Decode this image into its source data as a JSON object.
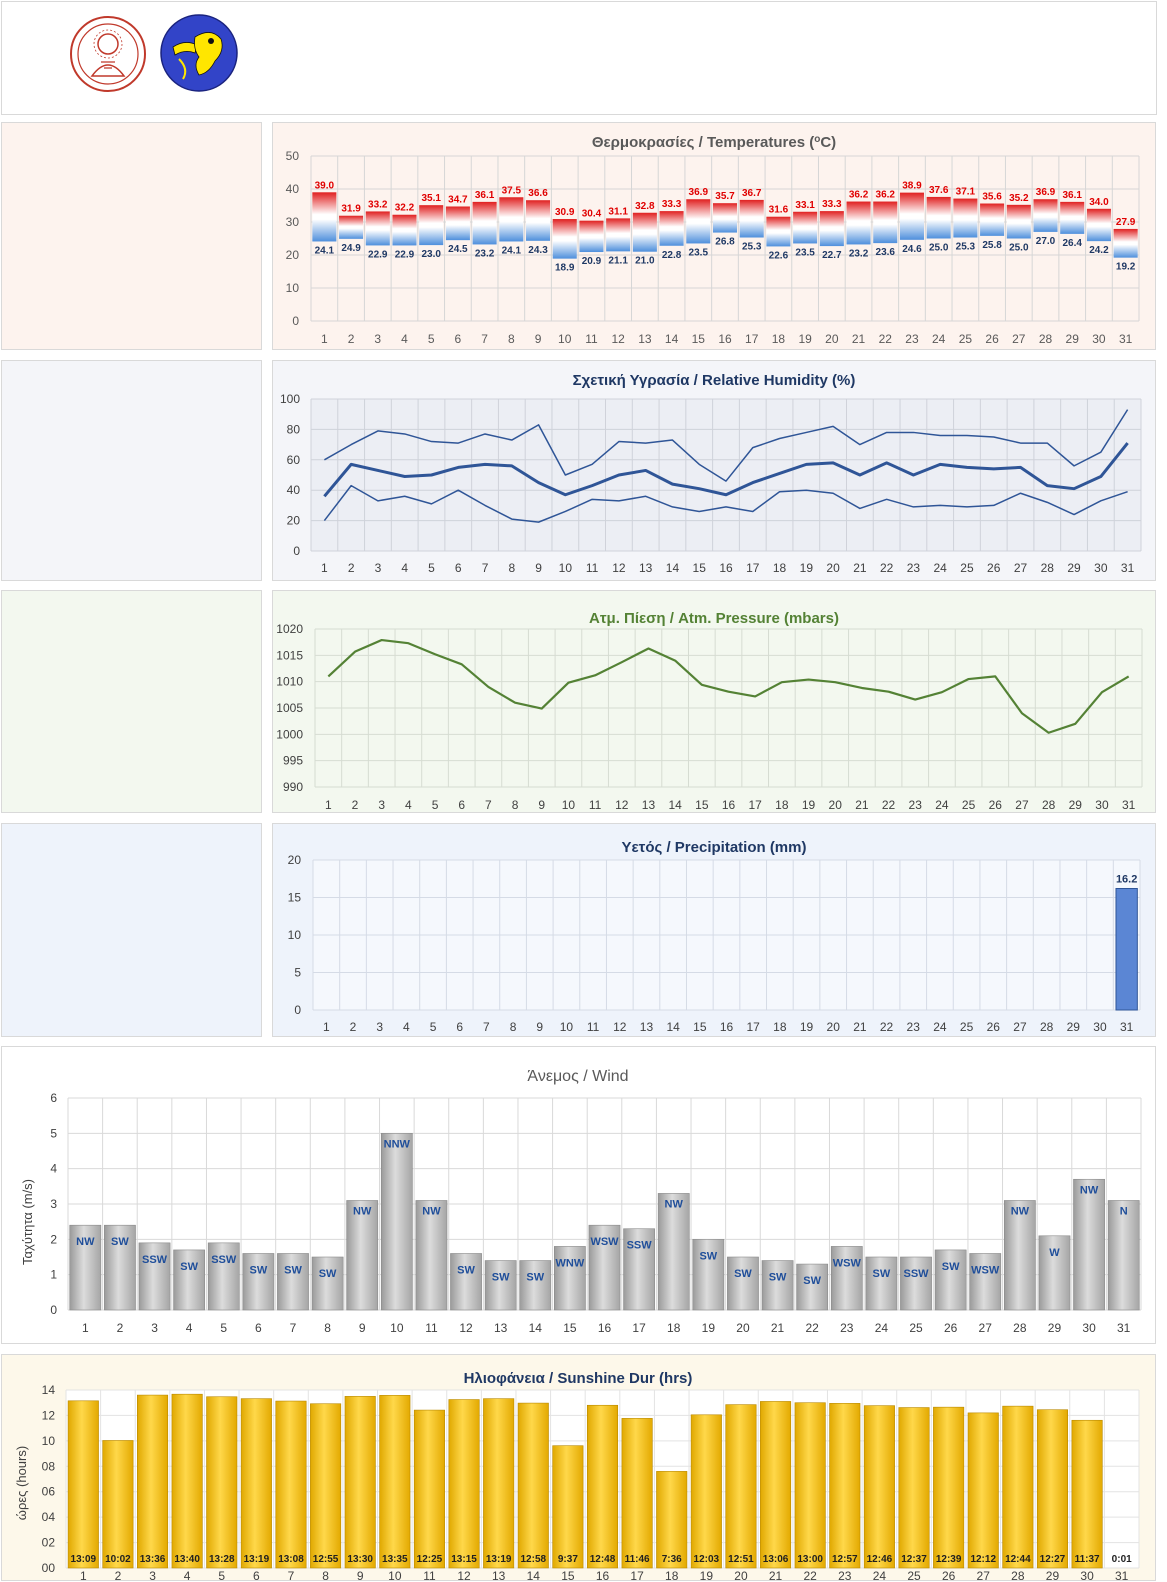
{
  "colors": {
    "temp_bg": "#fdf3ee",
    "hum_bg": "#f4f5f9",
    "hum_plot": "#eceef4",
    "pres_bg": "#f3f8ef",
    "precip_bg": "#eef3fb",
    "precip_plot": "#f5f8fd",
    "sun_bg": "#fdf8ea",
    "max_label": "#e00000",
    "min_label": "#1f3864",
    "humidity_line": "#2f5597",
    "pressure_line": "#548235",
    "precip_bar": "#5b86d4",
    "wind_bar": "#b8b8b8",
    "wind_label": "#1f4e9a",
    "sun_bar": "#ffc000",
    "temp_title": "#595959",
    "humidity_title": "#1f3864",
    "pressure_title": "#548235",
    "precip_title": "#1f3864",
    "wind_title": "#595959",
    "sun_title": "#1f3864"
  },
  "logos": [
    "university-seal",
    "meteorology-emblem"
  ],
  "chart_data": [
    {
      "id": "temperature",
      "type": "bar",
      "title": "Θερμοκρασίες / Temperatures (",
      "title_sup": "o",
      "title_end": "C)",
      "categories": [
        "1",
        "2",
        "3",
        "4",
        "5",
        "6",
        "7",
        "8",
        "9",
        "10",
        "11",
        "12",
        "13",
        "14",
        "15",
        "16",
        "17",
        "18",
        "19",
        "20",
        "21",
        "22",
        "23",
        "24",
        "25",
        "26",
        "27",
        "28",
        "29",
        "30",
        "31"
      ],
      "series": [
        {
          "name": "",
          "values": [
            39.0,
            31.9,
            33.2,
            32.2,
            35.1,
            34.7,
            36.1,
            37.5,
            36.6,
            30.9,
            30.4,
            31.1,
            32.8,
            33.3,
            36.9,
            35.7,
            36.7,
            31.6,
            33.1,
            33.3,
            36.2,
            36.2,
            38.9,
            37.6,
            37.1,
            35.6,
            35.2,
            36.9,
            36.1,
            34.0,
            27.9
          ]
        },
        {
          "name": "",
          "values": [
            24.1,
            24.9,
            22.9,
            22.9,
            23.0,
            24.5,
            23.2,
            24.1,
            24.3,
            18.9,
            20.9,
            21.1,
            21.0,
            22.8,
            23.5,
            26.8,
            25.3,
            22.6,
            23.5,
            22.7,
            23.2,
            23.6,
            24.6,
            25.0,
            25.3,
            25.8,
            25.0,
            27.0,
            26.4,
            24.2,
            19.2
          ]
        }
      ],
      "max_labels": [
        "39.0",
        "31.9",
        "33.2",
        "32.2",
        "35.1",
        "34.7",
        "36.1",
        "37.5",
        "36.6",
        "30.9",
        "30.4",
        "31.1",
        "32.8",
        "33.3",
        "36.9",
        "35.7",
        "36.7",
        "31.6",
        "33.1",
        "33.3",
        "36.2",
        "36.2",
        "38.9",
        "37.6",
        "37.1",
        "35.6",
        "35.2",
        "36.9",
        "36.1",
        "34.0",
        "27.9"
      ],
      "min_labels": [
        "24.1",
        "24.9",
        "22.9",
        "22.9",
        "23.0",
        "24.5",
        "23.2",
        "24.1",
        "24.3",
        "18.9",
        "20.9",
        "21.1",
        "21.0",
        "22.8",
        "23.5",
        "26.8",
        "25.3",
        "22.6",
        "23.5",
        "22.7",
        "23.2",
        "23.6",
        "24.6",
        "25.0",
        "25.3",
        "25.8",
        "25.0",
        "27.0",
        "26.4",
        "24.2",
        "19.2"
      ],
      "ylim": [
        0,
        50
      ],
      "yticks": [
        "0",
        "10",
        "20",
        "30",
        "40",
        "50"
      ]
    },
    {
      "id": "humidity",
      "type": "line",
      "title": "Σχετική Υγρασία / Relative Humidity (%)",
      "categories": [
        "1",
        "2",
        "3",
        "4",
        "5",
        "6",
        "7",
        "8",
        "9",
        "10",
        "11",
        "12",
        "13",
        "14",
        "15",
        "16",
        "17",
        "18",
        "19",
        "20",
        "21",
        "22",
        "23",
        "24",
        "25",
        "26",
        "27",
        "28",
        "29",
        "30",
        "31"
      ],
      "series": [
        {
          "name": "",
          "values": [
            60,
            70,
            79,
            77,
            72,
            71,
            77,
            73,
            83,
            50,
            57,
            72,
            71,
            73,
            57,
            46,
            68,
            74,
            78,
            82,
            70,
            78,
            78,
            76,
            76,
            75,
            71,
            71,
            56,
            65,
            93
          ]
        },
        {
          "name": "",
          "values": [
            36,
            57,
            53,
            49,
            50,
            55,
            57,
            56,
            45,
            37,
            43,
            50,
            53,
            44,
            41,
            37,
            45,
            51,
            57,
            58,
            50,
            58,
            50,
            57,
            55,
            54,
            55,
            43,
            41,
            49,
            71
          ]
        },
        {
          "name": "",
          "values": [
            20,
            43,
            33,
            36,
            31,
            40,
            30,
            21,
            19,
            26,
            34,
            33,
            36,
            29,
            26,
            29,
            26,
            39,
            40,
            38,
            28,
            34,
            29,
            30,
            29,
            30,
            38,
            32,
            24,
            33,
            39
          ]
        }
      ],
      "ylim": [
        0,
        100
      ],
      "yticks": [
        "0",
        "20",
        "40",
        "60",
        "80",
        "100"
      ]
    },
    {
      "id": "pressure",
      "type": "line",
      "title": "Ατμ. Πίεση / Atm. Pressure (mbars)",
      "categories": [
        "1",
        "2",
        "3",
        "4",
        "5",
        "6",
        "7",
        "8",
        "9",
        "10",
        "11",
        "12",
        "13",
        "14",
        "15",
        "16",
        "17",
        "18",
        "19",
        "20",
        "21",
        "22",
        "23",
        "24",
        "25",
        "26",
        "27",
        "28",
        "29",
        "30",
        "31"
      ],
      "series": [
        {
          "name": "",
          "values": [
            1011.0,
            1015.7,
            1017.9,
            1017.3,
            1015.2,
            1013.3,
            1009.0,
            1006.0,
            1004.9,
            1009.8,
            1011.2,
            1013.7,
            1016.3,
            1014.0,
            1009.4,
            1008.1,
            1007.2,
            1009.9,
            1010.4,
            1009.9,
            1008.8,
            1008.1,
            1006.6,
            1008.0,
            1010.5,
            1011.0,
            1004.0,
            1000.3,
            1002.0,
            1008.0,
            1011.0
          ]
        }
      ],
      "ylim": [
        990,
        1020
      ],
      "yticks": [
        "990",
        "995",
        "1000",
        "1005",
        "1010",
        "1015",
        "1020"
      ]
    },
    {
      "id": "precipitation",
      "type": "bar",
      "title": "Υετός / Precipitation (mm)",
      "categories": [
        "1",
        "2",
        "3",
        "4",
        "5",
        "6",
        "7",
        "8",
        "9",
        "10",
        "11",
        "12",
        "13",
        "14",
        "15",
        "16",
        "17",
        "18",
        "19",
        "20",
        "21",
        "22",
        "23",
        "24",
        "25",
        "26",
        "27",
        "28",
        "29",
        "30",
        "31"
      ],
      "values": [
        0,
        0,
        0,
        0,
        0,
        0,
        0,
        0,
        0,
        0,
        0,
        0,
        0,
        0,
        0,
        0,
        0,
        0,
        0,
        0,
        0,
        0,
        0,
        0,
        0,
        0,
        0,
        0,
        0,
        0,
        16.2
      ],
      "value_labels": {
        "31": "16.2"
      },
      "ylim": [
        0,
        20
      ],
      "yticks": [
        "0",
        "5",
        "10",
        "15",
        "20"
      ]
    },
    {
      "id": "wind",
      "type": "bar",
      "title": "Άνεμος / Wind",
      "ylabel": "Ταχύτητα  (m/s)",
      "categories": [
        "1",
        "2",
        "3",
        "4",
        "5",
        "6",
        "7",
        "8",
        "9",
        "10",
        "11",
        "12",
        "13",
        "14",
        "15",
        "16",
        "17",
        "18",
        "19",
        "20",
        "21",
        "22",
        "23",
        "24",
        "25",
        "26",
        "27",
        "28",
        "29",
        "30",
        "31"
      ],
      "values": [
        2.4,
        2.4,
        1.9,
        1.7,
        1.9,
        1.6,
        1.6,
        1.5,
        3.1,
        5.0,
        3.1,
        1.6,
        1.4,
        1.4,
        1.8,
        2.4,
        2.3,
        3.3,
        2.0,
        1.5,
        1.4,
        1.3,
        1.8,
        1.5,
        1.5,
        1.7,
        1.6,
        3.1,
        2.1,
        3.7,
        3.1
      ],
      "directions": [
        "NW",
        "SW",
        "SSW",
        "SW",
        "SSW",
        "SW",
        "SW",
        "SW",
        "NW",
        "NNW",
        "NW",
        "SW",
        "SW",
        "SW",
        "WNW",
        "WSW",
        "SSW",
        "NW",
        "SW",
        "SW",
        "SW",
        "SW",
        "WSW",
        "SW",
        "SSW",
        "SW",
        "WSW",
        "NW",
        "W",
        "NW",
        "N"
      ],
      "ylim": [
        0,
        6
      ],
      "yticks": [
        "0",
        "1",
        "2",
        "3",
        "4",
        "5",
        "6"
      ]
    },
    {
      "id": "sunshine",
      "type": "bar",
      "title": "Ηλιοφάνεια / Sunshine Dur (hrs)",
      "ylabel": "ώρες (hours)",
      "categories": [
        "1",
        "2",
        "3",
        "4",
        "5",
        "6",
        "7",
        "8",
        "9",
        "10",
        "11",
        "12",
        "13",
        "14",
        "15",
        "16",
        "17",
        "18",
        "19",
        "20",
        "21",
        "22",
        "23",
        "24",
        "25",
        "26",
        "27",
        "28",
        "29",
        "30",
        "31"
      ],
      "values": [
        13.15,
        10.03,
        13.6,
        13.67,
        13.47,
        13.32,
        13.13,
        12.92,
        13.5,
        13.58,
        12.42,
        13.25,
        13.32,
        12.97,
        9.62,
        12.8,
        11.77,
        7.6,
        12.05,
        12.85,
        13.1,
        13.0,
        12.95,
        12.77,
        12.62,
        12.65,
        12.2,
        12.73,
        12.45,
        11.62,
        0.02
      ],
      "value_labels": [
        "13:09",
        "10:02",
        "13:36",
        "13:40",
        "13:28",
        "13:19",
        "13:08",
        "12:55",
        "13:30",
        "13:35",
        "12:25",
        "13:15",
        "13:19",
        "12:58",
        "9:37",
        "12:48",
        "11:46",
        "7:36",
        "12:03",
        "12:51",
        "13:06",
        "13:00",
        "12:57",
        "12:46",
        "12:37",
        "12:39",
        "12:12",
        "12:44",
        "12:27",
        "11:37",
        "0:01"
      ],
      "ylim": [
        0,
        14
      ],
      "yticks": [
        "00",
        "02",
        "04",
        "06",
        "08",
        "10",
        "12",
        "14"
      ]
    }
  ]
}
